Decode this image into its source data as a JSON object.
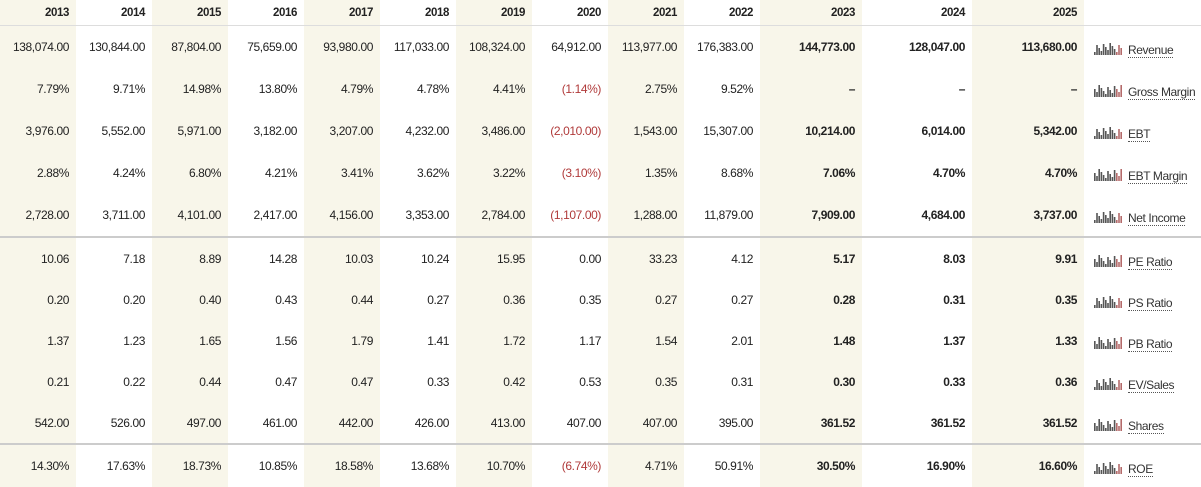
{
  "table": {
    "header": [
      "2013",
      "2014",
      "2015",
      "2016",
      "2017",
      "2018",
      "2019",
      "2020",
      "2021",
      "2022",
      "2023",
      "2024",
      "2025"
    ],
    "groups": [
      {
        "rows": [
          {
            "label": "Revenue",
            "cells": [
              "138,074.00",
              "130,844.00",
              "87,804.00",
              "75,659.00",
              "93,980.00",
              "117,033.00",
              "108,324.00",
              "64,912.00",
              "113,977.00",
              "176,383.00",
              "144,773.00",
              "128,047.00",
              "113,680.00"
            ]
          },
          {
            "label": "Gross Margin",
            "cells": [
              "7.79%",
              "9.71%",
              "14.98%",
              "13.80%",
              "4.79%",
              "4.78%",
              "4.41%",
              "(1.14%)",
              "2.75%",
              "9.52%",
              "–",
              "–",
              "–"
            ]
          },
          {
            "label": "EBT",
            "cells": [
              "3,976.00",
              "5,552.00",
              "5,971.00",
              "3,182.00",
              "3,207.00",
              "4,232.00",
              "3,486.00",
              "(2,010.00)",
              "1,543.00",
              "15,307.00",
              "10,214.00",
              "6,014.00",
              "5,342.00"
            ]
          },
          {
            "label": "EBT Margin",
            "cells": [
              "2.88%",
              "4.24%",
              "6.80%",
              "4.21%",
              "3.41%",
              "3.62%",
              "3.22%",
              "(3.10%)",
              "1.35%",
              "8.68%",
              "7.06%",
              "4.70%",
              "4.70%"
            ]
          },
          {
            "label": "Net Income",
            "cells": [
              "2,728.00",
              "3,711.00",
              "4,101.00",
              "2,417.00",
              "4,156.00",
              "3,353.00",
              "2,784.00",
              "(1,107.00)",
              "1,288.00",
              "11,879.00",
              "7,909.00",
              "4,684.00",
              "3,737.00"
            ]
          }
        ]
      },
      {
        "rows": [
          {
            "label": "PE Ratio",
            "cells": [
              "10.06",
              "7.18",
              "8.89",
              "14.28",
              "10.03",
              "10.24",
              "15.95",
              "0.00",
              "33.23",
              "4.12",
              "5.17",
              "8.03",
              "9.91"
            ]
          },
          {
            "label": "PS Ratio",
            "cells": [
              "0.20",
              "0.20",
              "0.40",
              "0.43",
              "0.44",
              "0.27",
              "0.36",
              "0.35",
              "0.27",
              "0.27",
              "0.28",
              "0.31",
              "0.35"
            ]
          },
          {
            "label": "PB Ratio",
            "cells": [
              "1.37",
              "1.23",
              "1.65",
              "1.56",
              "1.79",
              "1.41",
              "1.72",
              "1.17",
              "1.54",
              "2.01",
              "1.48",
              "1.37",
              "1.33"
            ]
          },
          {
            "label": "EV/Sales",
            "cells": [
              "0.21",
              "0.22",
              "0.44",
              "0.47",
              "0.47",
              "0.33",
              "0.42",
              "0.53",
              "0.35",
              "0.31",
              "0.30",
              "0.33",
              "0.36"
            ]
          },
          {
            "label": "Shares",
            "cells": [
              "542.00",
              "526.00",
              "497.00",
              "461.00",
              "442.00",
              "426.00",
              "413.00",
              "407.00",
              "407.00",
              "395.00",
              "361.52",
              "361.52",
              "361.52"
            ]
          }
        ]
      },
      {
        "rows": [
          {
            "label": "ROE",
            "cells": [
              "14.30%",
              "17.63%",
              "18.73%",
              "10.85%",
              "18.58%",
              "13.68%",
              "10.70%",
              "(6.74%)",
              "4.71%",
              "50.91%",
              "30.50%",
              "16.90%",
              "16.60%"
            ]
          }
        ]
      }
    ]
  }
}
